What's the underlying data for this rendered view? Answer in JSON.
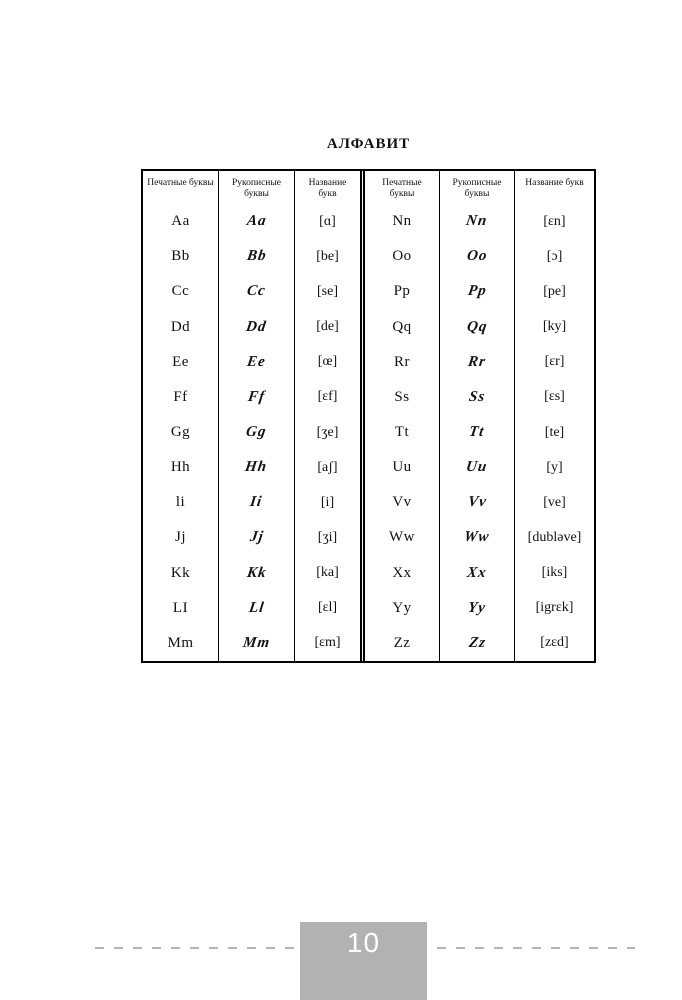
{
  "page": {
    "title": "АЛФАВИТ",
    "footer": {
      "page_number": "10"
    }
  },
  "table": {
    "header": {
      "printed": "Печатные буквы",
      "cursive": "Рукописные буквы",
      "names": "Название букв"
    },
    "left": [
      {
        "p": "Aa",
        "c": "Aa",
        "n": "[ɑ]"
      },
      {
        "p": "Bb",
        "c": "Bb",
        "n": "[be]"
      },
      {
        "p": "Cc",
        "c": "Cc",
        "n": "[se]"
      },
      {
        "p": "Dd",
        "c": "Dd",
        "n": "[de]"
      },
      {
        "p": "Ee",
        "c": "Ee",
        "n": "[œ]"
      },
      {
        "p": "Ff",
        "c": "Ff",
        "n": "[ɛf]"
      },
      {
        "p": "Gg",
        "c": "Gg",
        "n": "[ʒe]"
      },
      {
        "p": "Hh",
        "c": "Hh",
        "n": "[aʃ]"
      },
      {
        "p": "li",
        "c": "Ii",
        "n": "[i]"
      },
      {
        "p": "Jj",
        "c": "Jj",
        "n": "[ʒi]"
      },
      {
        "p": "Kk",
        "c": "Kk",
        "n": "[ka]"
      },
      {
        "p": "LI",
        "c": "Ll",
        "n": "[ɛl]"
      },
      {
        "p": "Mm",
        "c": "Mm",
        "n": "[ɛm]"
      }
    ],
    "right": [
      {
        "p": "Nn",
        "c": "Nn",
        "n": "[ɛn]"
      },
      {
        "p": "Oo",
        "c": "Oo",
        "n": "[ɔ]"
      },
      {
        "p": "Pp",
        "c": "Pp",
        "n": "[pe]"
      },
      {
        "p": "Qq",
        "c": "Qq",
        "n": "[ky]"
      },
      {
        "p": "Rr",
        "c": "Rr",
        "n": "[ɛr]"
      },
      {
        "p": "Ss",
        "c": "Ss",
        "n": "[ɛs]"
      },
      {
        "p": "Tt",
        "c": "Tt",
        "n": "[te]"
      },
      {
        "p": "Uu",
        "c": "Uu",
        "n": "[y]"
      },
      {
        "p": "Vv",
        "c": "Vv",
        "n": "[ve]"
      },
      {
        "p": "Ww",
        "c": "Ww",
        "n": "[dubləve]"
      },
      {
        "p": "Xx",
        "c": "Xx",
        "n": "[iks]"
      },
      {
        "p": "Yy",
        "c": "Yy",
        "n": "[igrɛk]"
      },
      {
        "p": "Zz",
        "c": "Zz",
        "n": "[zɛd]"
      }
    ]
  }
}
